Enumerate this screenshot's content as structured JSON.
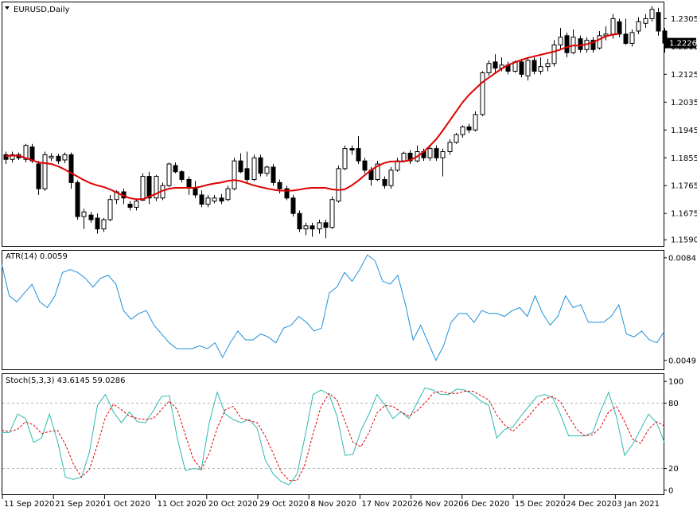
{
  "chart_data": [
    {
      "type": "candlestick",
      "title": "EURUSD,Daily",
      "y_ticks": [
        "1.2305",
        "1.2215",
        "1.2125",
        "1.2035",
        "1.1945",
        "1.1855",
        "1.1765",
        "1.1675",
        "1.1590"
      ],
      "y_tick_values": [
        1.2305,
        1.2215,
        1.2125,
        1.2035,
        1.1945,
        1.1855,
        1.1765,
        1.1675,
        1.159
      ],
      "ylim": [
        1.157,
        1.2355
      ],
      "current_price": "1.2226",
      "current_price_value": 1.2226,
      "colors": {
        "ma": "#e00000",
        "candle": "#000000",
        "price_box": "#000000"
      },
      "ma_values": [
        1.186,
        1.1862,
        1.1862,
        1.1855,
        1.1848,
        1.184,
        1.1838,
        1.1835,
        1.1828,
        1.1818,
        1.1806,
        1.1795,
        1.1783,
        1.1773,
        1.1766,
        1.1761,
        1.1753,
        1.1743,
        1.1733,
        1.1725,
        1.1721,
        1.1721,
        1.1729,
        1.1738,
        1.1748,
        1.1755,
        1.1758,
        1.1758,
        1.1758,
        1.1758,
        1.1762,
        1.1768,
        1.1772,
        1.1775,
        1.178,
        1.1783,
        1.178,
        1.1773,
        1.1766,
        1.1761,
        1.1756,
        1.1752,
        1.1749,
        1.1749,
        1.1749,
        1.1752,
        1.1756,
        1.1758,
        1.1758,
        1.1758,
        1.1753,
        1.1751,
        1.1753,
        1.1765,
        1.178,
        1.1798,
        1.1815,
        1.1828,
        1.1838,
        1.1843,
        1.1843,
        1.1843,
        1.1848,
        1.1858,
        1.1873,
        1.1893,
        1.1915,
        1.1943,
        1.1973,
        1.2003,
        1.2033,
        1.2058,
        1.2078,
        1.2098,
        1.2113,
        1.2128,
        1.2143,
        1.2155,
        1.2163,
        1.2171,
        1.2178,
        1.2183,
        1.2188,
        1.2193,
        1.2198,
        1.2205,
        1.2213,
        1.2218,
        1.2218,
        1.2222,
        1.2228,
        1.2238,
        1.2248,
        1.2253,
        1.2256
      ],
      "candles": [
        [
          1.1865,
          1.185,
          1.1875,
          1.1835
        ],
        [
          1.185,
          1.1865,
          1.1875,
          1.184
        ],
        [
          1.1865,
          1.1855,
          1.1872,
          1.1848
        ],
        [
          1.185,
          1.1895,
          1.19,
          1.184
        ],
        [
          1.189,
          1.1845,
          1.19,
          1.1838
        ],
        [
          1.1835,
          1.1755,
          1.1845,
          1.1735
        ],
        [
          1.1755,
          1.1865,
          1.1875,
          1.1748
        ],
        [
          1.1855,
          1.186,
          1.187,
          1.1845
        ],
        [
          1.186,
          1.1845,
          1.1868,
          1.1835
        ],
        [
          1.1848,
          1.1865,
          1.1872,
          1.1838
        ],
        [
          1.1865,
          1.1775,
          1.1872,
          1.1755
        ],
        [
          1.1775,
          1.1665,
          1.1782,
          1.1655
        ],
        [
          1.1665,
          1.168,
          1.169,
          1.1625
        ],
        [
          1.167,
          1.1655,
          1.168,
          1.1645
        ],
        [
          1.166,
          1.1625,
          1.1675,
          1.161
        ],
        [
          1.1625,
          1.1655,
          1.166,
          1.1615
        ],
        [
          1.1655,
          1.172,
          1.1735,
          1.165
        ],
        [
          1.172,
          1.1745,
          1.175,
          1.1705
        ],
        [
          1.1745,
          1.1725,
          1.1755,
          1.1705
        ],
        [
          1.1705,
          1.1695,
          1.1715,
          1.1685
        ],
        [
          1.1695,
          1.1715,
          1.172,
          1.1685
        ],
        [
          1.1718,
          1.1795,
          1.1805,
          1.1715
        ],
        [
          1.1795,
          1.1725,
          1.181,
          1.1705
        ],
        [
          1.1725,
          1.1795,
          1.18,
          1.1715
        ],
        [
          1.1725,
          1.1765,
          1.1775,
          1.1718
        ],
        [
          1.1765,
          1.1835,
          1.184,
          1.176
        ],
        [
          1.183,
          1.181,
          1.184,
          1.1805
        ],
        [
          1.181,
          1.1785,
          1.1815,
          1.1775
        ],
        [
          1.1785,
          1.176,
          1.1795,
          1.1735
        ],
        [
          1.1755,
          1.1735,
          1.178,
          1.1725
        ],
        [
          1.1735,
          1.1705,
          1.175,
          1.1695
        ],
        [
          1.1705,
          1.1725,
          1.1735,
          1.1695
        ],
        [
          1.1715,
          1.1725,
          1.1735,
          1.1708
        ],
        [
          1.1725,
          1.1715,
          1.1738,
          1.1705
        ],
        [
          1.172,
          1.1755,
          1.1765,
          1.1715
        ],
        [
          1.1755,
          1.1845,
          1.1855,
          1.175
        ],
        [
          1.1845,
          1.181,
          1.187,
          1.1805
        ],
        [
          1.182,
          1.1785,
          1.1875,
          1.1775
        ],
        [
          1.1785,
          1.1855,
          1.1865,
          1.178
        ],
        [
          1.1855,
          1.1805,
          1.1865,
          1.1795
        ],
        [
          1.1805,
          1.1825,
          1.183,
          1.1795
        ],
        [
          1.1825,
          1.1775,
          1.1835,
          1.1765
        ],
        [
          1.1775,
          1.1755,
          1.1785,
          1.174
        ],
        [
          1.1755,
          1.1725,
          1.1765,
          1.1718
        ],
        [
          1.1725,
          1.1675,
          1.1735,
          1.1665
        ],
        [
          1.1675,
          1.1625,
          1.1685,
          1.1615
        ],
        [
          1.1625,
          1.1635,
          1.1645,
          1.1605
        ],
        [
          1.1635,
          1.1625,
          1.1645,
          1.16
        ],
        [
          1.1625,
          1.1645,
          1.1655,
          1.161
        ],
        [
          1.1645,
          1.163,
          1.1655,
          1.1595
        ],
        [
          1.163,
          1.172,
          1.173,
          1.1625
        ],
        [
          1.1715,
          1.182,
          1.183,
          1.171
        ],
        [
          1.182,
          1.1885,
          1.1895,
          1.1815
        ],
        [
          1.1885,
          1.188,
          1.1895,
          1.1865
        ],
        [
          1.1885,
          1.1845,
          1.1925,
          1.1835
        ],
        [
          1.1845,
          1.1815,
          1.1855,
          1.1805
        ],
        [
          1.1815,
          1.1785,
          1.1825,
          1.1765
        ],
        [
          1.1785,
          1.1835,
          1.1845,
          1.178
        ],
        [
          1.1785,
          1.1765,
          1.1795,
          1.1755
        ],
        [
          1.1765,
          1.1815,
          1.1825,
          1.1755
        ],
        [
          1.1815,
          1.1845,
          1.1855,
          1.181
        ],
        [
          1.1845,
          1.187,
          1.1875,
          1.184
        ],
        [
          1.187,
          1.1845,
          1.188,
          1.1835
        ],
        [
          1.1845,
          1.1875,
          1.1895,
          1.184
        ],
        [
          1.1875,
          1.1855,
          1.1885,
          1.1845
        ],
        [
          1.1855,
          1.1885,
          1.1895,
          1.1845
        ],
        [
          1.1885,
          1.1855,
          1.1895,
          1.1845
        ],
        [
          1.1855,
          1.1875,
          1.1885,
          1.1795
        ],
        [
          1.1875,
          1.1905,
          1.1915,
          1.1865
        ],
        [
          1.1905,
          1.193,
          1.1935,
          1.19
        ],
        [
          1.193,
          1.1955,
          1.196,
          1.192
        ],
        [
          1.1955,
          1.1945,
          1.1965,
          1.1935
        ],
        [
          1.1945,
          1.1995,
          1.2005,
          1.194
        ],
        [
          1.1995,
          1.213,
          1.2135,
          1.199
        ],
        [
          1.213,
          1.216,
          1.217,
          1.212
        ],
        [
          1.2165,
          1.2145,
          1.219,
          1.213
        ],
        [
          1.2145,
          1.2155,
          1.218,
          1.2135
        ],
        [
          1.2155,
          1.2135,
          1.2165,
          1.2125
        ],
        [
          1.2135,
          1.2165,
          1.217,
          1.213
        ],
        [
          1.2165,
          1.2125,
          1.2175,
          1.2115
        ],
        [
          1.212,
          1.217,
          1.218,
          1.2105
        ],
        [
          1.217,
          1.2135,
          1.218,
          1.2125
        ],
        [
          1.2135,
          1.215,
          1.218,
          1.2125
        ],
        [
          1.215,
          1.216,
          1.2175,
          1.2135
        ],
        [
          1.216,
          1.222,
          1.2235,
          1.215
        ],
        [
          1.222,
          1.2245,
          1.2275,
          1.2205
        ],
        [
          1.225,
          1.2195,
          1.226,
          1.218
        ],
        [
          1.2195,
          1.2245,
          1.227,
          1.219
        ],
        [
          1.224,
          1.2205,
          1.225,
          1.2195
        ],
        [
          1.2205,
          1.2235,
          1.2245,
          1.2195
        ],
        [
          1.2235,
          1.2205,
          1.2245,
          1.2195
        ],
        [
          1.221,
          1.225,
          1.2265,
          1.2205
        ],
        [
          1.225,
          1.2255,
          1.228,
          1.2235
        ],
        [
          1.2255,
          1.2305,
          1.232,
          1.224
        ],
        [
          1.2295,
          1.2255,
          1.2305,
          1.2245
        ],
        [
          1.2255,
          1.2225,
          1.2305,
          1.222
        ],
        [
          1.2225,
          1.226,
          1.227,
          1.2215
        ],
        [
          1.2265,
          1.2295,
          1.231,
          1.2255
        ],
        [
          1.229,
          1.2305,
          1.232,
          1.2275
        ],
        [
          1.2305,
          1.2335,
          1.2345,
          1.2295
        ],
        [
          1.2325,
          1.2265,
          1.234,
          1.225
        ],
        [
          1.2265,
          1.2226,
          1.2275,
          1.2195
        ]
      ]
    },
    {
      "type": "line",
      "title": "ATR(14) 0.0059",
      "y_ticks": [
        "0.0084",
        "0.0049"
      ],
      "y_tick_values": [
        0.0084,
        0.0049
      ],
      "ylim": [
        0.00465,
        0.00845
      ],
      "colors": {
        "line": "#1e90d8"
      },
      "values": [
        0.0082,
        0.0071,
        0.0069,
        0.0072,
        0.0075,
        0.0069,
        0.0067,
        0.0071,
        0.0079,
        0.008,
        0.0079,
        0.0077,
        0.0074,
        0.0077,
        0.0078,
        0.0075,
        0.0066,
        0.0063,
        0.0065,
        0.0066,
        0.0061,
        0.0058,
        0.0055,
        0.0053,
        0.0053,
        0.0053,
        0.0054,
        0.0053,
        0.0055,
        0.005,
        0.0055,
        0.0059,
        0.0056,
        0.0056,
        0.0058,
        0.0057,
        0.0055,
        0.006,
        0.0061,
        0.0064,
        0.0062,
        0.0059,
        0.006,
        0.0072,
        0.0074,
        0.0079,
        0.0076,
        0.008,
        0.0085,
        0.0083,
        0.0076,
        0.0075,
        0.0078,
        0.0068,
        0.0056,
        0.0061,
        0.0055,
        0.0049,
        0.0054,
        0.0062,
        0.0065,
        0.0065,
        0.0062,
        0.0066,
        0.0065,
        0.0065,
        0.0064,
        0.0066,
        0.0067,
        0.0064,
        0.0071,
        0.0065,
        0.0061,
        0.0064,
        0.0071,
        0.0067,
        0.0068,
        0.0062,
        0.0062,
        0.0062,
        0.0064,
        0.0068,
        0.0058,
        0.0057,
        0.0059,
        0.0056,
        0.0055,
        0.0059
      ]
    },
    {
      "type": "line",
      "title": "Stoch(5,3,3) 43.6145 59.0286",
      "y_ticks": [
        "100",
        "80",
        "20",
        "0"
      ],
      "y_tick_values": [
        100,
        80,
        20,
        0
      ],
      "levels": [
        80,
        20
      ],
      "ylim": [
        -3,
        106
      ],
      "x_tick_labels": [
        "11 Sep 2020",
        "21 Sep 2020",
        "1 Oct 2020",
        "11 Oct 2020",
        "20 Oct 2020",
        "29 Oct 2020",
        "8 Nov 2020",
        "17 Nov 2020",
        "26 Nov 2020",
        "6 Dec 2020",
        "15 Dec 2020",
        "24 Dec 2020",
        "3 Jan 2021"
      ],
      "colors": {
        "main": "#2eb8b0",
        "signal": "#e00000",
        "level": "#b4b4b4"
      },
      "series": [
        {
          "values": [
            53,
            53,
            70,
            66,
            44,
            48,
            70,
            45,
            12,
            10,
            12,
            35,
            78,
            88,
            72,
            62,
            72,
            63,
            62,
            73,
            86,
            87,
            48,
            18,
            20,
            19,
            62,
            90,
            70,
            65,
            62,
            65,
            57,
            28,
            15,
            8,
            5,
            15,
            50,
            88,
            92,
            88,
            68,
            32,
            33,
            55,
            70,
            88,
            78,
            66,
            72,
            66,
            80,
            94,
            92,
            88,
            88,
            93,
            92,
            88,
            82,
            78,
            48,
            56,
            58,
            68,
            77,
            86,
            88,
            85,
            69,
            50,
            50,
            50,
            53,
            73,
            90,
            67,
            32,
            42,
            56,
            70,
            62,
            43.6145
          ]
        },
        {
          "values": [
            55,
            54,
            56,
            63,
            60,
            52,
            54,
            55,
            42,
            24,
            12,
            19,
            42,
            67,
            79,
            74,
            68,
            66,
            65,
            66,
            74,
            82,
            74,
            51,
            29,
            19,
            34,
            57,
            74,
            77,
            66,
            64,
            62,
            50,
            34,
            17,
            9,
            9,
            24,
            52,
            77,
            89,
            83,
            63,
            44,
            40,
            53,
            71,
            78,
            77,
            72,
            68,
            73,
            80,
            89,
            91,
            89,
            89,
            91,
            91,
            87,
            83,
            69,
            60,
            54,
            61,
            68,
            77,
            84,
            86,
            81,
            68,
            56,
            50,
            51,
            58,
            72,
            77,
            63,
            47,
            43,
            56,
            63,
            59.0286
          ]
        }
      ]
    }
  ]
}
